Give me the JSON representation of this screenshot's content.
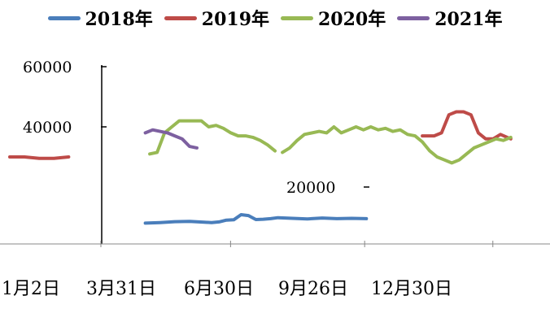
{
  "chart_data": {
    "type": "line",
    "series": [
      {
        "name": "2018年",
        "color": "#4a7ebb",
        "x": [
          92,
          102,
          112,
          122,
          132,
          137,
          142,
          147,
          152,
          157,
          162,
          167,
          172,
          177,
          182,
          192,
          202,
          212,
          222,
          232,
          242
        ],
        "values": [
          8000,
          8200,
          8500,
          8600,
          8300,
          8200,
          8400,
          9000,
          9100,
          10800,
          10500,
          9200,
          9300,
          9500,
          9800,
          9600,
          9400,
          9700,
          9500,
          9600,
          9500
        ]
      },
      {
        "name": "2019年",
        "color": "#be4b48",
        "x": [
          0,
          10,
          20,
          30,
          40,
          280,
          288,
          293,
          298,
          303,
          308,
          313,
          318,
          323,
          328,
          333,
          340
        ],
        "values": [
          30000,
          30000,
          29500,
          29500,
          30000,
          37000,
          37000,
          38000,
          44000,
          45000,
          45000,
          44000,
          38000,
          36000,
          36000,
          37500,
          36000
        ],
        "segments": [
          [
            0,
            5
          ],
          [
            5,
            17
          ]
        ]
      },
      {
        "name": "2020年",
        "color": "#98b954",
        "x": [
          95,
          100,
          105,
          110,
          115,
          120,
          125,
          130,
          135,
          140,
          145,
          150,
          155,
          160,
          165,
          170,
          175,
          180,
          185,
          190,
          195,
          200,
          210,
          215,
          220,
          225,
          230,
          235,
          240,
          245,
          250,
          255,
          260,
          265,
          270,
          275,
          280,
          285,
          290,
          295,
          300,
          305,
          310,
          315,
          320,
          325,
          330,
          335,
          340
        ],
        "values": [
          31000,
          31500,
          38000,
          40000,
          42000,
          42000,
          42000,
          42000,
          40000,
          40500,
          39500,
          38000,
          37000,
          37000,
          36500,
          35500,
          34000,
          32000,
          31500,
          33000,
          35500,
          37500,
          38500,
          38000,
          40000,
          38000,
          39000,
          40000,
          39000,
          40000,
          39000,
          39500,
          38500,
          39000,
          37500,
          37000,
          35000,
          32000,
          30000,
          29000,
          28000,
          29000,
          31000,
          33000,
          34000,
          35000,
          36000,
          35500,
          36500
        ],
        "segments": [
          [
            0,
            18
          ],
          [
            18,
            49
          ]
        ]
      },
      {
        "name": "2021年",
        "color": "#7d60a0",
        "x": [
          92,
          97,
          102,
          107,
          112,
          117,
          122,
          127
        ],
        "values": [
          38000,
          39000,
          38500,
          38000,
          37000,
          36000,
          33500,
          33000
        ]
      }
    ],
    "xticks": [
      {
        "label": "1月2日",
        "x": 0
      },
      {
        "label": "3月31日",
        "x": 88
      },
      {
        "label": "6月30日",
        "x": 179
      },
      {
        "label": "9月26日",
        "x": 266
      },
      {
        "label": "12月30日",
        "x": 360
      }
    ],
    "yticks": [
      {
        "label": "60000",
        "value": 60000
      },
      {
        "label": "40000",
        "value": 40000
      },
      {
        "label": "20000",
        "value": 20000
      }
    ],
    "xlim": [
      0,
      360
    ],
    "ylim": [
      0,
      60000
    ],
    "grid": false,
    "legend_position": "top"
  }
}
